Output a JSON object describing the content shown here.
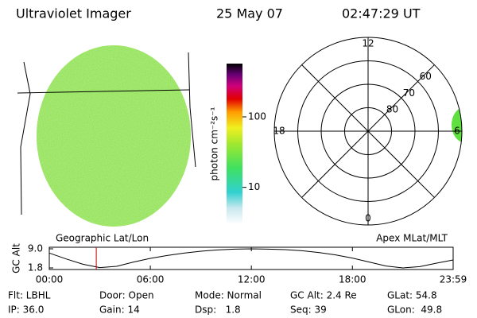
{
  "header": {
    "title": "Ultraviolet Imager",
    "date": "25 May 07",
    "time": "02:47:29 UT"
  },
  "colorbar": {
    "label": "photon cm⁻²s⁻¹",
    "log": true,
    "lim": [
      3,
      570
    ],
    "ticks": [
      10,
      100
    ]
  },
  "polar": {
    "rlim": [
      90,
      50
    ],
    "rings": [
      80,
      70,
      60
    ],
    "mlt": [
      12,
      18,
      0,
      6
    ]
  },
  "chart_data": {
    "type": "line",
    "ylabel": "GC Alt",
    "left_label": "Geographic Lat/Lon",
    "right_label": "Apex MLat/MLT",
    "x": [
      0,
      1,
      2,
      3,
      4,
      5,
      6,
      7,
      8,
      9,
      10,
      11,
      12,
      13,
      14,
      15,
      16,
      17,
      18,
      19,
      20,
      21,
      22,
      23,
      23.98
    ],
    "series": [
      {
        "color": "#000000",
        "values": [
          7.4,
          5.2,
          3.2,
          1.9,
          2.4,
          4.0,
          5.4,
          6.5,
          7.4,
          8.1,
          8.6,
          8.9,
          9.0,
          8.9,
          8.7,
          8.3,
          7.6,
          6.7,
          5.5,
          4.0,
          2.5,
          1.8,
          2.3,
          3.6,
          4.8
        ]
      }
    ],
    "marker_x": 2.79,
    "marker_color": "#c00000",
    "xlim": [
      0,
      23.983
    ],
    "ylim": [
      1.8,
      9.0
    ],
    "xticks": [
      {
        "value": 0,
        "label": "00:00"
      },
      {
        "value": 6,
        "label": "06:00"
      },
      {
        "value": 12,
        "label": "12:00"
      },
      {
        "value": 18,
        "label": "18:00"
      },
      {
        "value": 23.983,
        "label": "23:59"
      }
    ],
    "yticks": [
      {
        "value": 9.0,
        "label": "9.0"
      },
      1.8
    ]
  },
  "footer": {
    "rows": [
      [
        "Flt: LBHL",
        "Door: Open",
        "Mode: Normal",
        "GC Alt: 2.4 Re",
        "GLat: 54.8"
      ],
      [
        "IP: 36.0",
        "Gain: 14",
        "Dsp:   1.8",
        "Seq: 39",
        "GLon:  49.8"
      ]
    ]
  }
}
